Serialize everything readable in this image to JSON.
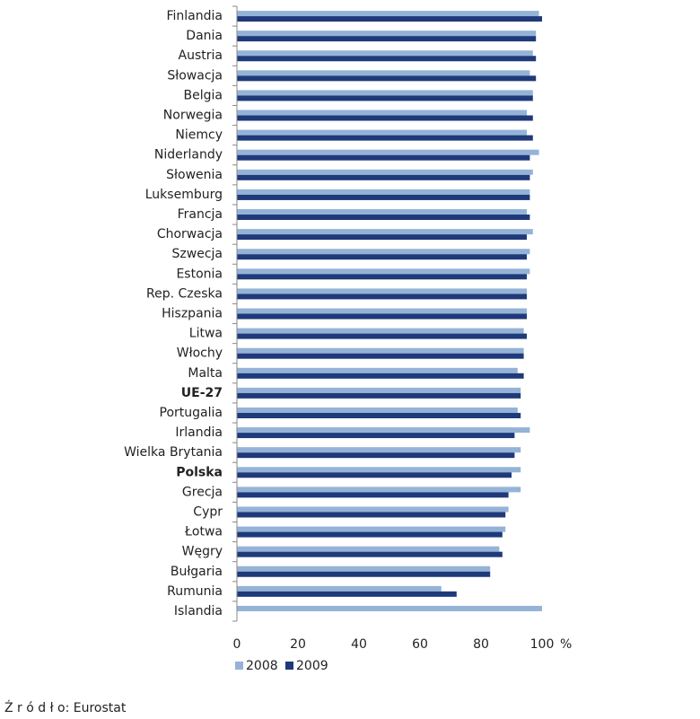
{
  "chart_data": {
    "type": "hbar",
    "categories": [
      "Finlandia",
      "Dania",
      "Austria",
      "Słowacja",
      "Belgia",
      "Norwegia",
      "Niemcy",
      "Niderlandy",
      "Słowenia",
      "Luksemburg",
      "Francja",
      "Chorwacja",
      "Szwecja",
      "Estonia",
      "Rep. Czeska",
      "Hiszpania",
      "Litwa",
      "Włochy",
      "Malta",
      "UE-27",
      "Portugalia",
      "Irlandia",
      "Wielka Brytania",
      "Polska",
      "Grecja",
      "Cypr",
      "Łotwa",
      "Węgry",
      "Bułgaria",
      "Rumunia",
      "Islandia"
    ],
    "bold_categories": [
      "UE-27",
      "Polska"
    ],
    "series": [
      {
        "name": "2008",
        "color": "#95b3d7",
        "values": [
          99,
          98,
          97,
          96,
          97,
          95,
          95,
          99,
          97,
          96,
          95,
          97,
          96,
          96,
          95,
          95,
          94,
          94,
          92,
          93,
          92,
          96,
          93,
          93,
          93,
          89,
          88,
          86,
          83,
          67,
          100
        ]
      },
      {
        "name": "2009",
        "color": "#1f3a7a",
        "values": [
          100,
          98,
          98,
          98,
          97,
          97,
          97,
          96,
          96,
          96,
          96,
          95,
          95,
          95,
          95,
          95,
          95,
          94,
          94,
          93,
          93,
          91,
          91,
          90,
          89,
          88,
          87,
          87,
          83,
          72,
          null
        ]
      }
    ],
    "xlim": [
      0,
      100
    ],
    "xticks": [
      0,
      20,
      40,
      60,
      80,
      100
    ],
    "x_label": "%",
    "source": "Ź r ó d ł o: Eurostat"
  }
}
